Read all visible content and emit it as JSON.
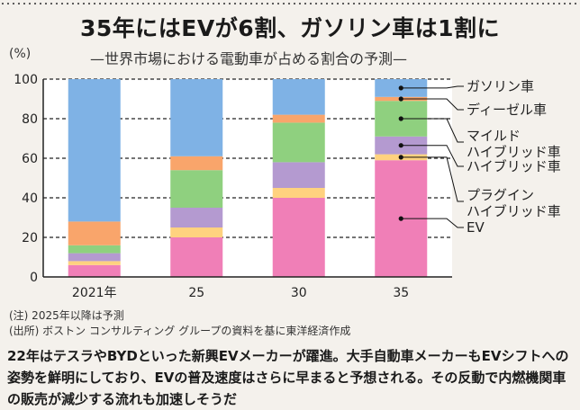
{
  "title": "35年にはEVが6割、ガソリン車は1割に",
  "subtitle": "—世界市場における電動車が占める割合の予測—",
  "unit": "(%)",
  "notes": [
    "(注) 2025年以降は予測",
    "(出所) ボストン コンサルティング グループの資料を基に東洋経済作成"
  ],
  "body_text": "22年はテスラやBYDといった新興EVメーカーが躍進。大手自動車メーカーもEVシフトへの姿勢を鮮明にしており、EVの普及速度はさらに早まると予想される。その反動で内燃機関車の販売が減少する流れも加速しそうだ",
  "chart_data": {
    "type": "bar",
    "stacked": true,
    "categories": [
      "2021年",
      "25",
      "30",
      "35"
    ],
    "ylim": [
      0,
      100
    ],
    "yticks": [
      0,
      20,
      40,
      60,
      80,
      100
    ],
    "grid": "dashed-horizontal",
    "legend_placement": "right",
    "series": [
      {
        "name": "EV",
        "color": "#f07fb7",
        "values": [
          6,
          20,
          40,
          59
        ]
      },
      {
        "name": "プラグイン\nハイブリッド車",
        "color": "#ffd27f",
        "values": [
          2,
          5,
          5,
          3
        ]
      },
      {
        "name": "ハイブリッド車",
        "color": "#b49ad0",
        "values": [
          4,
          10,
          13,
          9
        ]
      },
      {
        "name": "マイルド\nハイブリッド車",
        "color": "#8fd07f",
        "values": [
          4,
          19,
          20,
          18
        ]
      },
      {
        "name": "ディーゼル車",
        "color": "#f9a56b",
        "values": [
          12,
          7,
          4,
          2
        ]
      },
      {
        "name": "ガソリン車",
        "color": "#7fb2e5",
        "values": [
          72,
          39,
          18,
          9
        ]
      }
    ]
  }
}
